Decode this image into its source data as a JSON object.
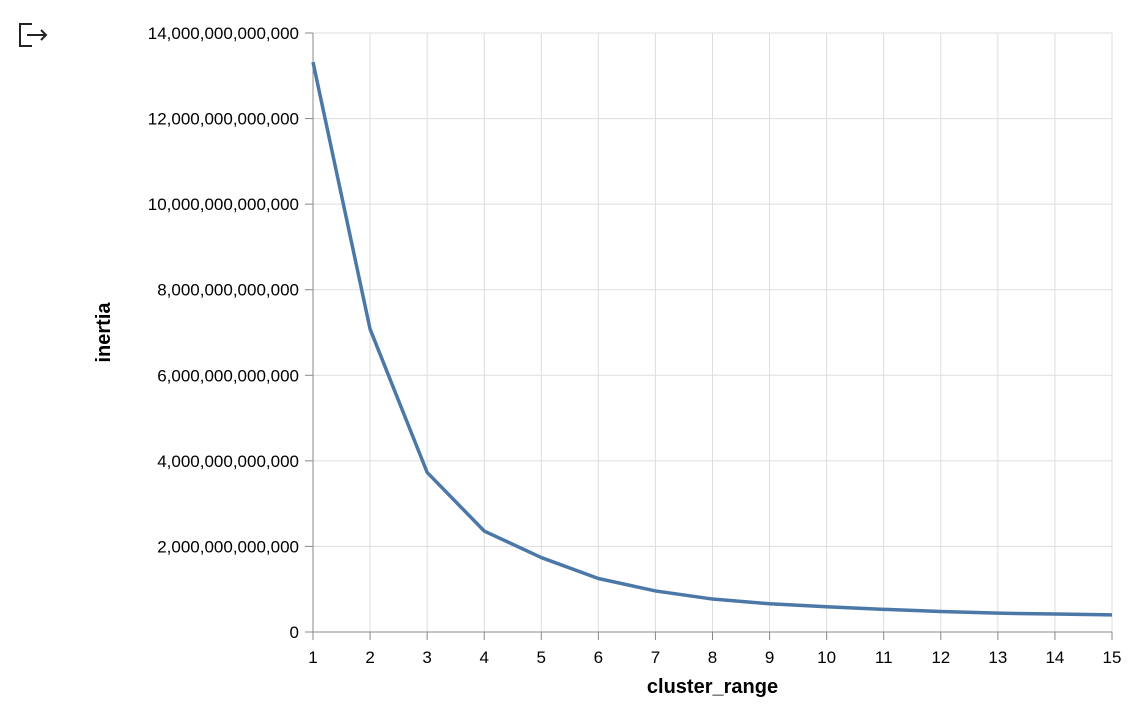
{
  "toolbar": {
    "export_icon": "export-icon"
  },
  "chart_data": {
    "type": "line",
    "xlabel": "cluster_range",
    "ylabel": "inertia",
    "x": [
      1,
      2,
      3,
      4,
      5,
      6,
      7,
      8,
      9,
      10,
      11,
      12,
      13,
      14,
      15
    ],
    "series": [
      {
        "name": "",
        "color": "#4c78a8",
        "values": [
          13320000000000,
          7080000000000,
          3730000000000,
          2360000000000,
          1740000000000,
          1250000000000,
          960000000000,
          770000000000,
          660000000000,
          590000000000,
          530000000000,
          480000000000,
          440000000000,
          420000000000,
          400000000000
        ]
      }
    ],
    "xlim": [
      1,
      15
    ],
    "ylim": [
      0,
      14000000000000
    ],
    "xticks": [
      1,
      2,
      3,
      4,
      5,
      6,
      7,
      8,
      9,
      10,
      11,
      12,
      13,
      14,
      15
    ],
    "yticks": [
      0,
      2000000000000,
      4000000000000,
      6000000000000,
      8000000000000,
      10000000000000,
      12000000000000,
      14000000000000
    ],
    "ytick_labels": [
      "0",
      "2,000,000,000,000",
      "4,000,000,000,000",
      "6,000,000,000,000",
      "8,000,000,000,000",
      "10,000,000,000,000",
      "12,000,000,000,000",
      "14,000,000,000,000"
    ],
    "grid": true
  }
}
